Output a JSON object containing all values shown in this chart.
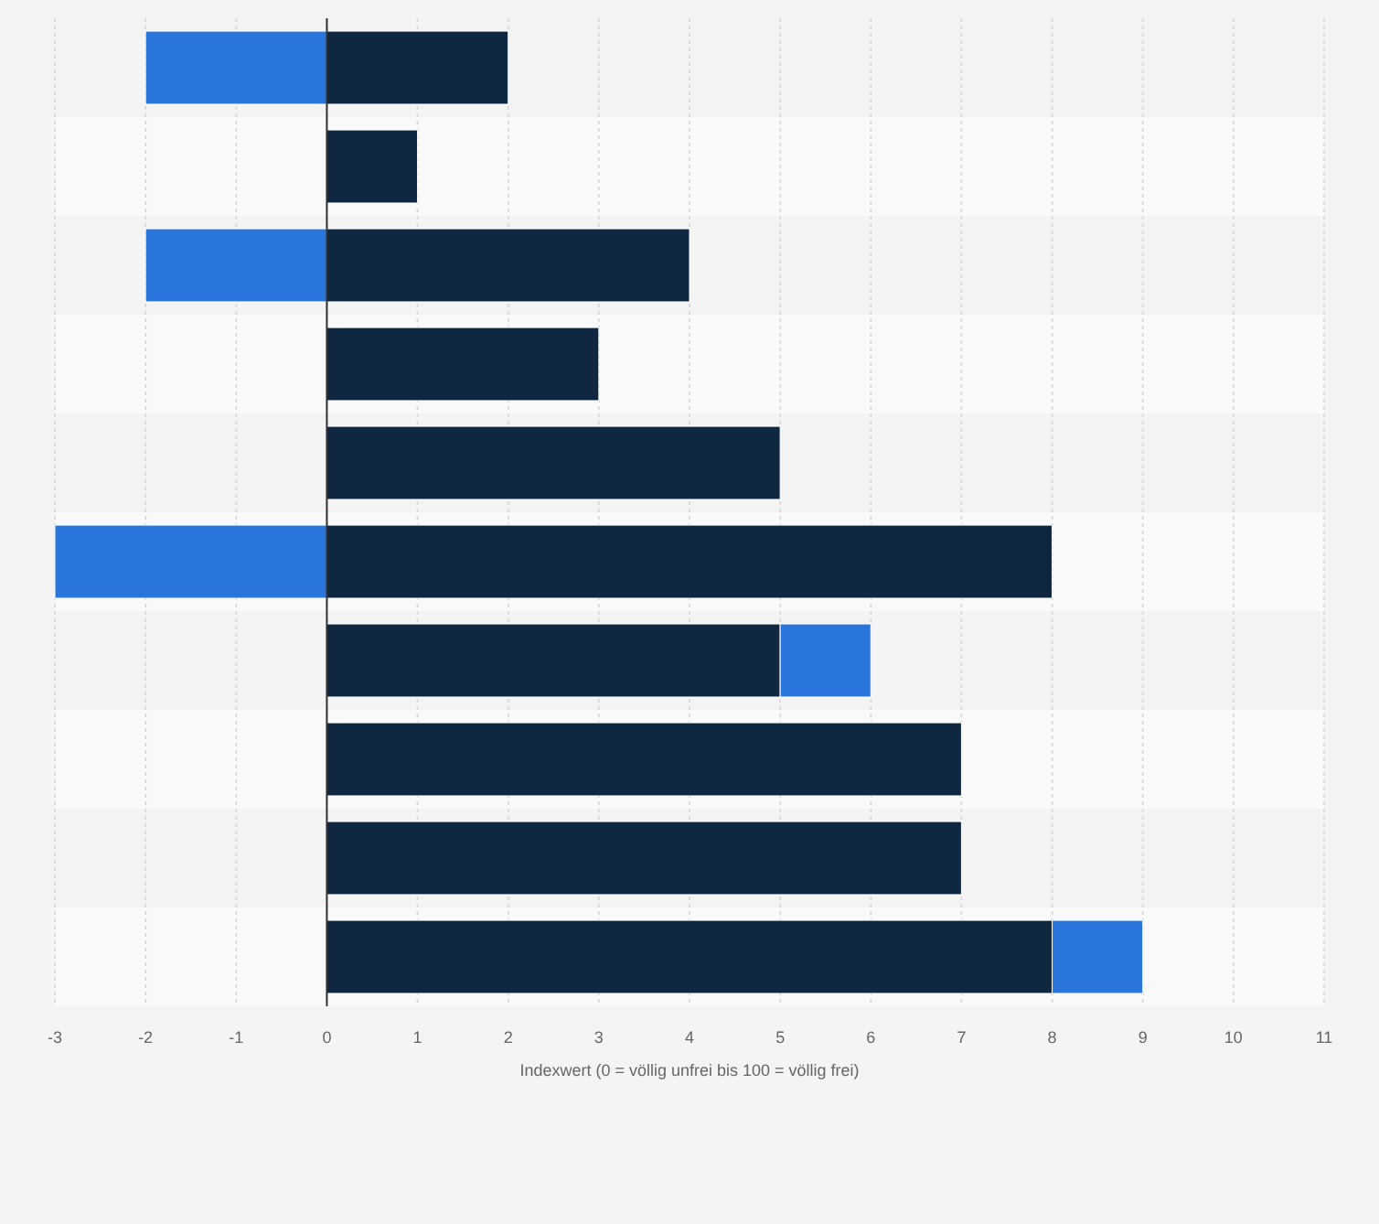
{
  "chart_data": {
    "type": "bar",
    "orientation": "horizontal",
    "stacked": true,
    "categories": [
      null,
      null,
      null,
      null,
      null,
      null,
      null,
      null,
      null,
      null
    ],
    "series": [
      {
        "color": "#0f2740",
        "values": [
          2,
          1,
          4,
          3,
          5,
          8,
          5,
          7,
          7,
          8
        ]
      },
      {
        "color": "#2a76dd",
        "values": [
          -2,
          null,
          -2,
          null,
          null,
          -3,
          1,
          null,
          null,
          1
        ]
      }
    ],
    "xlim": [
      -3,
      11
    ],
    "xticks": [
      -3,
      -2,
      -1,
      0,
      1,
      2,
      3,
      4,
      5,
      6,
      7,
      8,
      9,
      10,
      11
    ],
    "grid": "x",
    "xlabel": "Indexwert (0 = völlig unfrei bis 100 = völlig frei)"
  }
}
